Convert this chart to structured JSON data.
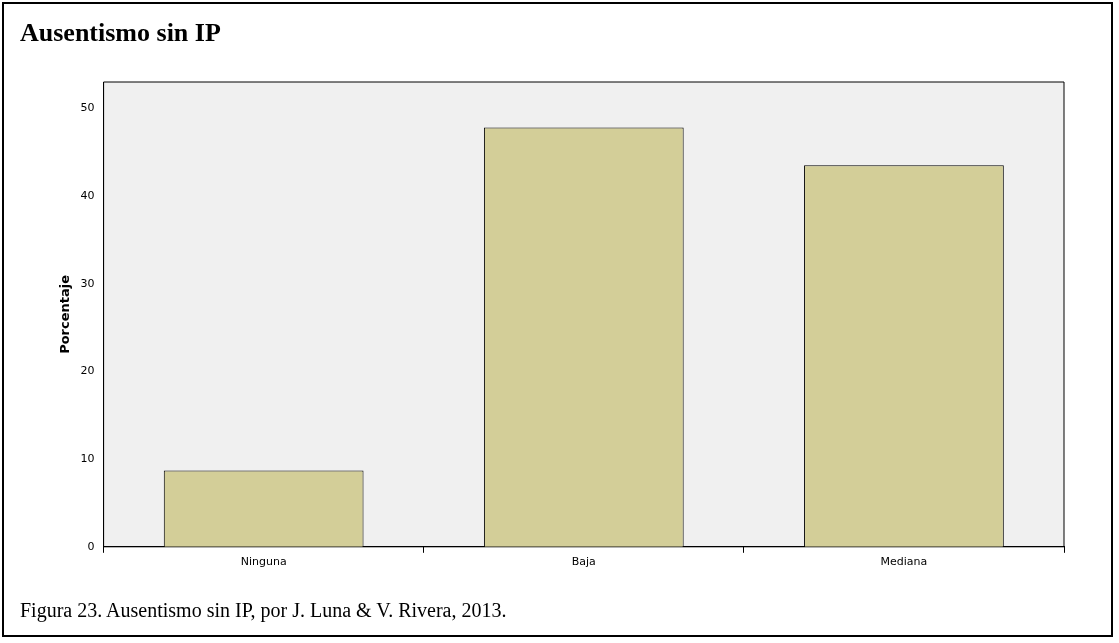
{
  "chart_data": {
    "type": "bar",
    "title": "Ausentismo sin IP",
    "ylabel": "Porcentaje",
    "categories": [
      "Ninguna",
      "Baja",
      "Mediana"
    ],
    "values": [
      8.7,
      47.8,
      43.5
    ],
    "color": "#d3ce98",
    "ylim": [
      0,
      53
    ],
    "yticks": [
      0,
      10,
      20,
      30,
      40,
      50
    ],
    "grid": false,
    "legend": false,
    "annotations": [
      "Figura 23. Ausentismo sin IP, por J. Luna & V. Rivera, 2013."
    ]
  }
}
